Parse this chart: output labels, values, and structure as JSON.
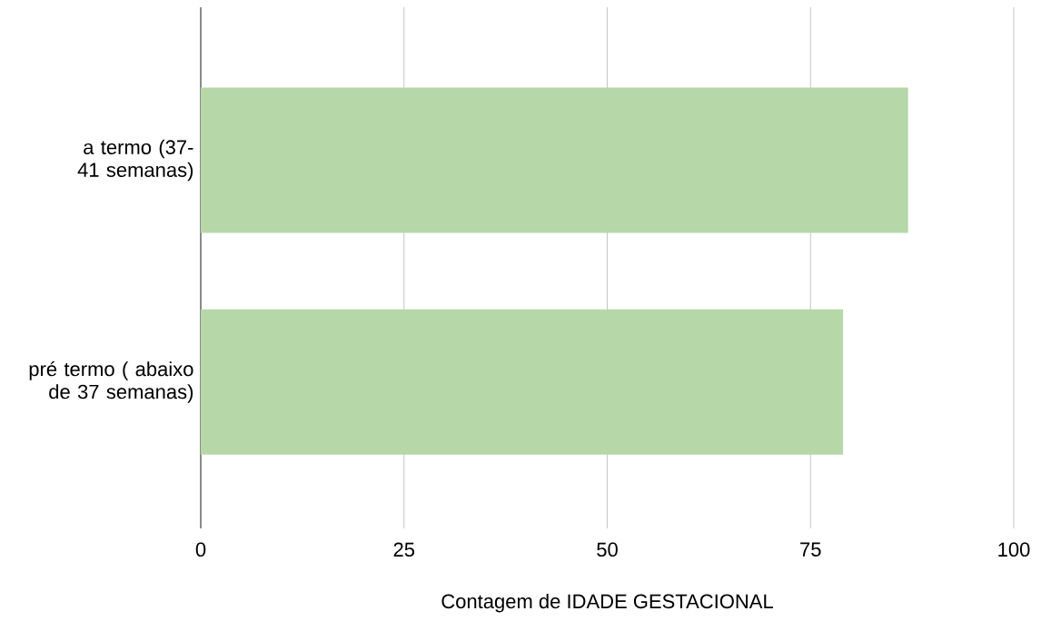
{
  "chart_data": {
    "type": "bar",
    "orientation": "horizontal",
    "xlabel": "Contagem de IDADE GESTACIONAL",
    "categories": [
      "a termo (37-41 semanas)",
      "pré termo ( abaixo de 37 semanas)"
    ],
    "values": [
      87,
      79
    ],
    "color": "#b6d7a8",
    "xlim": [
      0,
      100
    ],
    "xticks": [
      0,
      25,
      50,
      75,
      100
    ],
    "grid": "x"
  }
}
